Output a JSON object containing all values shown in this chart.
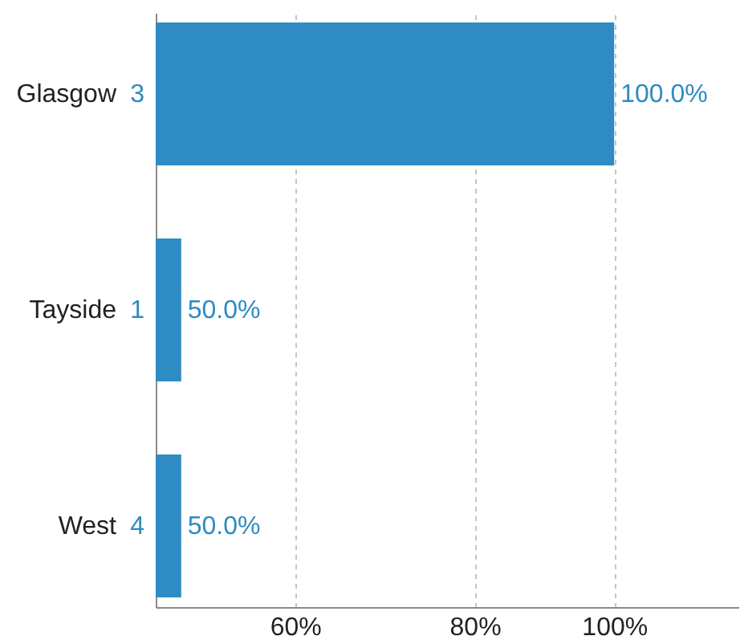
{
  "chart_data": {
    "type": "bar",
    "orientation": "horizontal",
    "categories": [
      "Glasgow",
      "Tayside",
      "West"
    ],
    "values": [
      100,
      50,
      50
    ],
    "value_labels": [
      "100.0%",
      "50.0%",
      "50.0%"
    ],
    "color": "#2e8bc3",
    "log": "x",
    "xlim": [
      48,
      122
    ],
    "xticks": [
      {
        "value": 60,
        "label": "60%"
      },
      {
        "value": 80,
        "label": "80%"
      },
      {
        "value": 100,
        "label": "100%"
      }
    ],
    "grid": "x",
    "annotations": [
      "3",
      "1",
      "4"
    ]
  }
}
